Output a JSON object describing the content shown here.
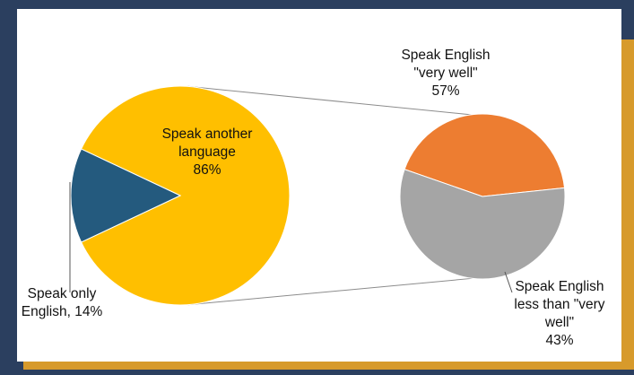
{
  "colors": {
    "background": "#2b3f5f",
    "frame_accent": "#d79a2b",
    "panel": "#ffffff",
    "another_language": "#ffbf00",
    "english_only": "#245a7e",
    "very_well": "#ed7d31",
    "less_than_very_well": "#a5a5a5",
    "connector": "#8c8c8c"
  },
  "chart_data": {
    "type": "pie",
    "subtype": "pie-of-pie",
    "main": {
      "slices": [
        {
          "label_lines": [
            "Speak another",
            "language",
            "86%"
          ],
          "value": 86
        },
        {
          "label_lines": [
            "Speak only",
            "English, 14%"
          ],
          "value": 14
        }
      ]
    },
    "breakdown": {
      "of_slice": "Speak another language",
      "slices": [
        {
          "label_lines": [
            "Speak English",
            "\"very well\"",
            "57%"
          ],
          "value": 57
        },
        {
          "label_lines": [
            "Speak English",
            "less than \"very",
            "well\"",
            "43%"
          ],
          "value": 43
        }
      ]
    }
  }
}
